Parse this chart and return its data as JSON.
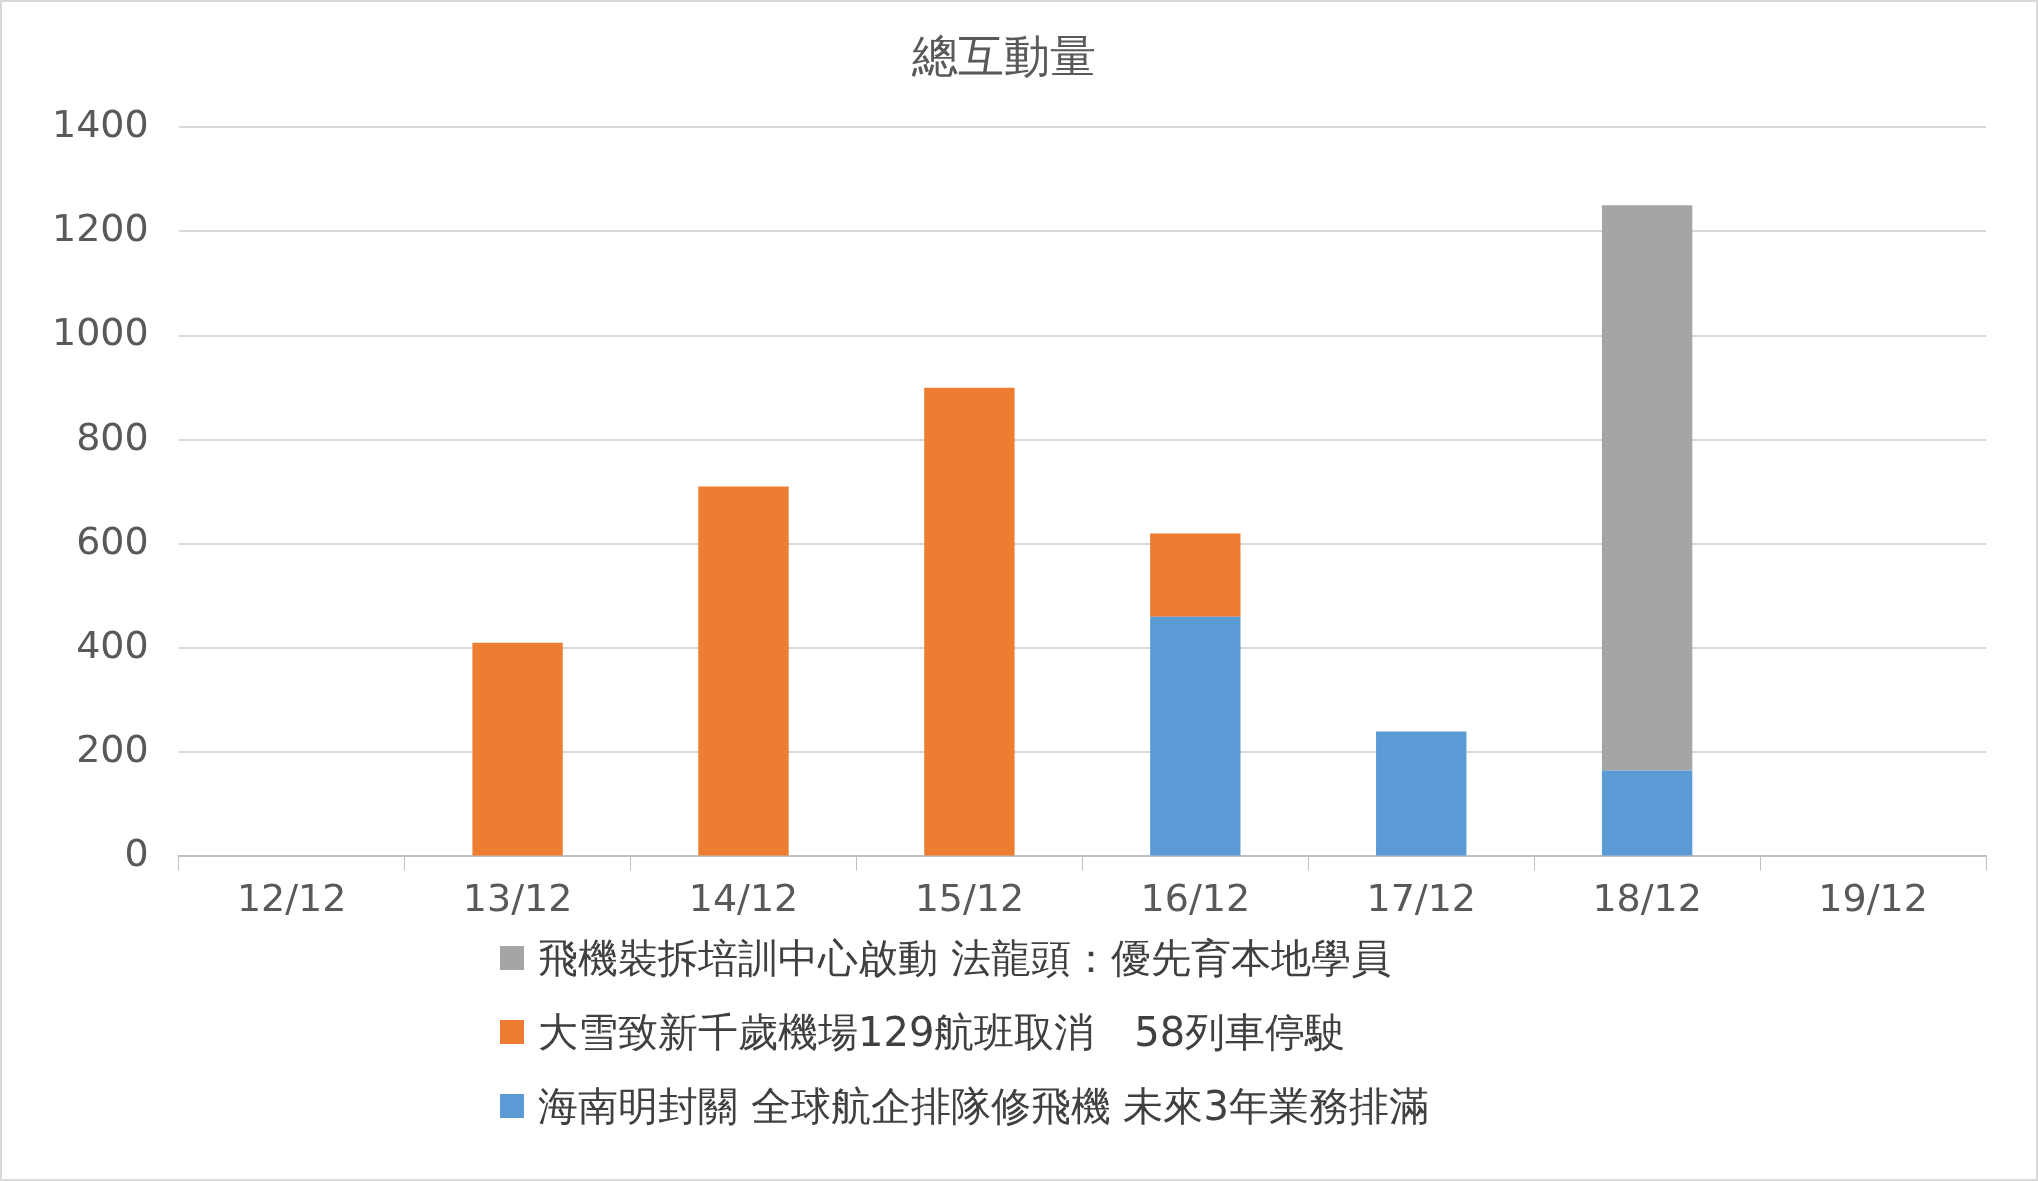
{
  "chart_data": {
    "type": "bar",
    "title": "總互動量",
    "categories": [
      "12/12",
      "13/12",
      "14/12",
      "15/12",
      "16/12",
      "17/12",
      "18/12",
      "19/12"
    ],
    "stacked": true,
    "series": [
      {
        "name": "海南明封關 全球航企排隊修飛機 未來3年業務排滿",
        "color": "#5b9bd5",
        "values": [
          null,
          null,
          null,
          null,
          460,
          240,
          165,
          null
        ]
      },
      {
        "name": "大雪致新千歲機場129航班取消　58列車停駛",
        "color": "#ed7d31",
        "values": [
          null,
          410,
          710,
          900,
          160,
          null,
          null,
          null
        ]
      },
      {
        "name": "飛機裝拆培訓中心啟動 法龍頭：優先育本地學員",
        "color": "#a5a5a5",
        "values": [
          null,
          null,
          null,
          null,
          null,
          null,
          1085,
          null
        ]
      }
    ],
    "ylim": [
      0,
      1400
    ],
    "yticks": [
      0,
      200,
      400,
      600,
      800,
      1000,
      1200,
      1400
    ],
    "grid": "y",
    "legend": "bottom"
  }
}
